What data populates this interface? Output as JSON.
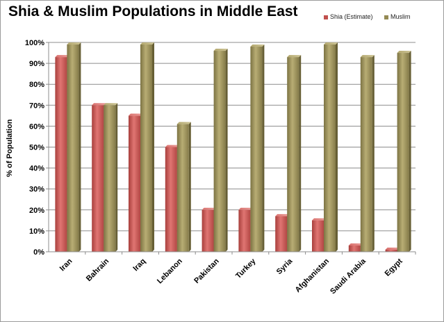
{
  "chart_data": {
    "type": "bar",
    "title": "Shia & Muslim Populations in Middle East",
    "xlabel": "",
    "ylabel": "% of Population",
    "ylim": [
      0,
      100
    ],
    "yticks": [
      0,
      10,
      20,
      30,
      40,
      50,
      60,
      70,
      80,
      90,
      100
    ],
    "ytick_labels": [
      "0%",
      "10%",
      "20%",
      "30%",
      "40%",
      "50%",
      "60%",
      "70%",
      "80%",
      "90%",
      "100%"
    ],
    "grid": true,
    "legend_position": "top-right",
    "categories": [
      "Iran",
      "Bahrain",
      "Iraq",
      "Lebanon",
      "Pakistan",
      "Turkey",
      "Syria",
      "Afghanistan",
      "Saudi Arabia",
      "Egypt"
    ],
    "series": [
      {
        "name": "Shia (Estimate)",
        "color": "#c0504d",
        "values": [
          93,
          70,
          65,
          50,
          20,
          20,
          17,
          15,
          3,
          1
        ]
      },
      {
        "name": "Muslim",
        "color": "#948a54",
        "values": [
          99,
          70,
          99,
          61,
          96,
          98,
          93,
          99,
          93,
          95
        ]
      }
    ]
  }
}
